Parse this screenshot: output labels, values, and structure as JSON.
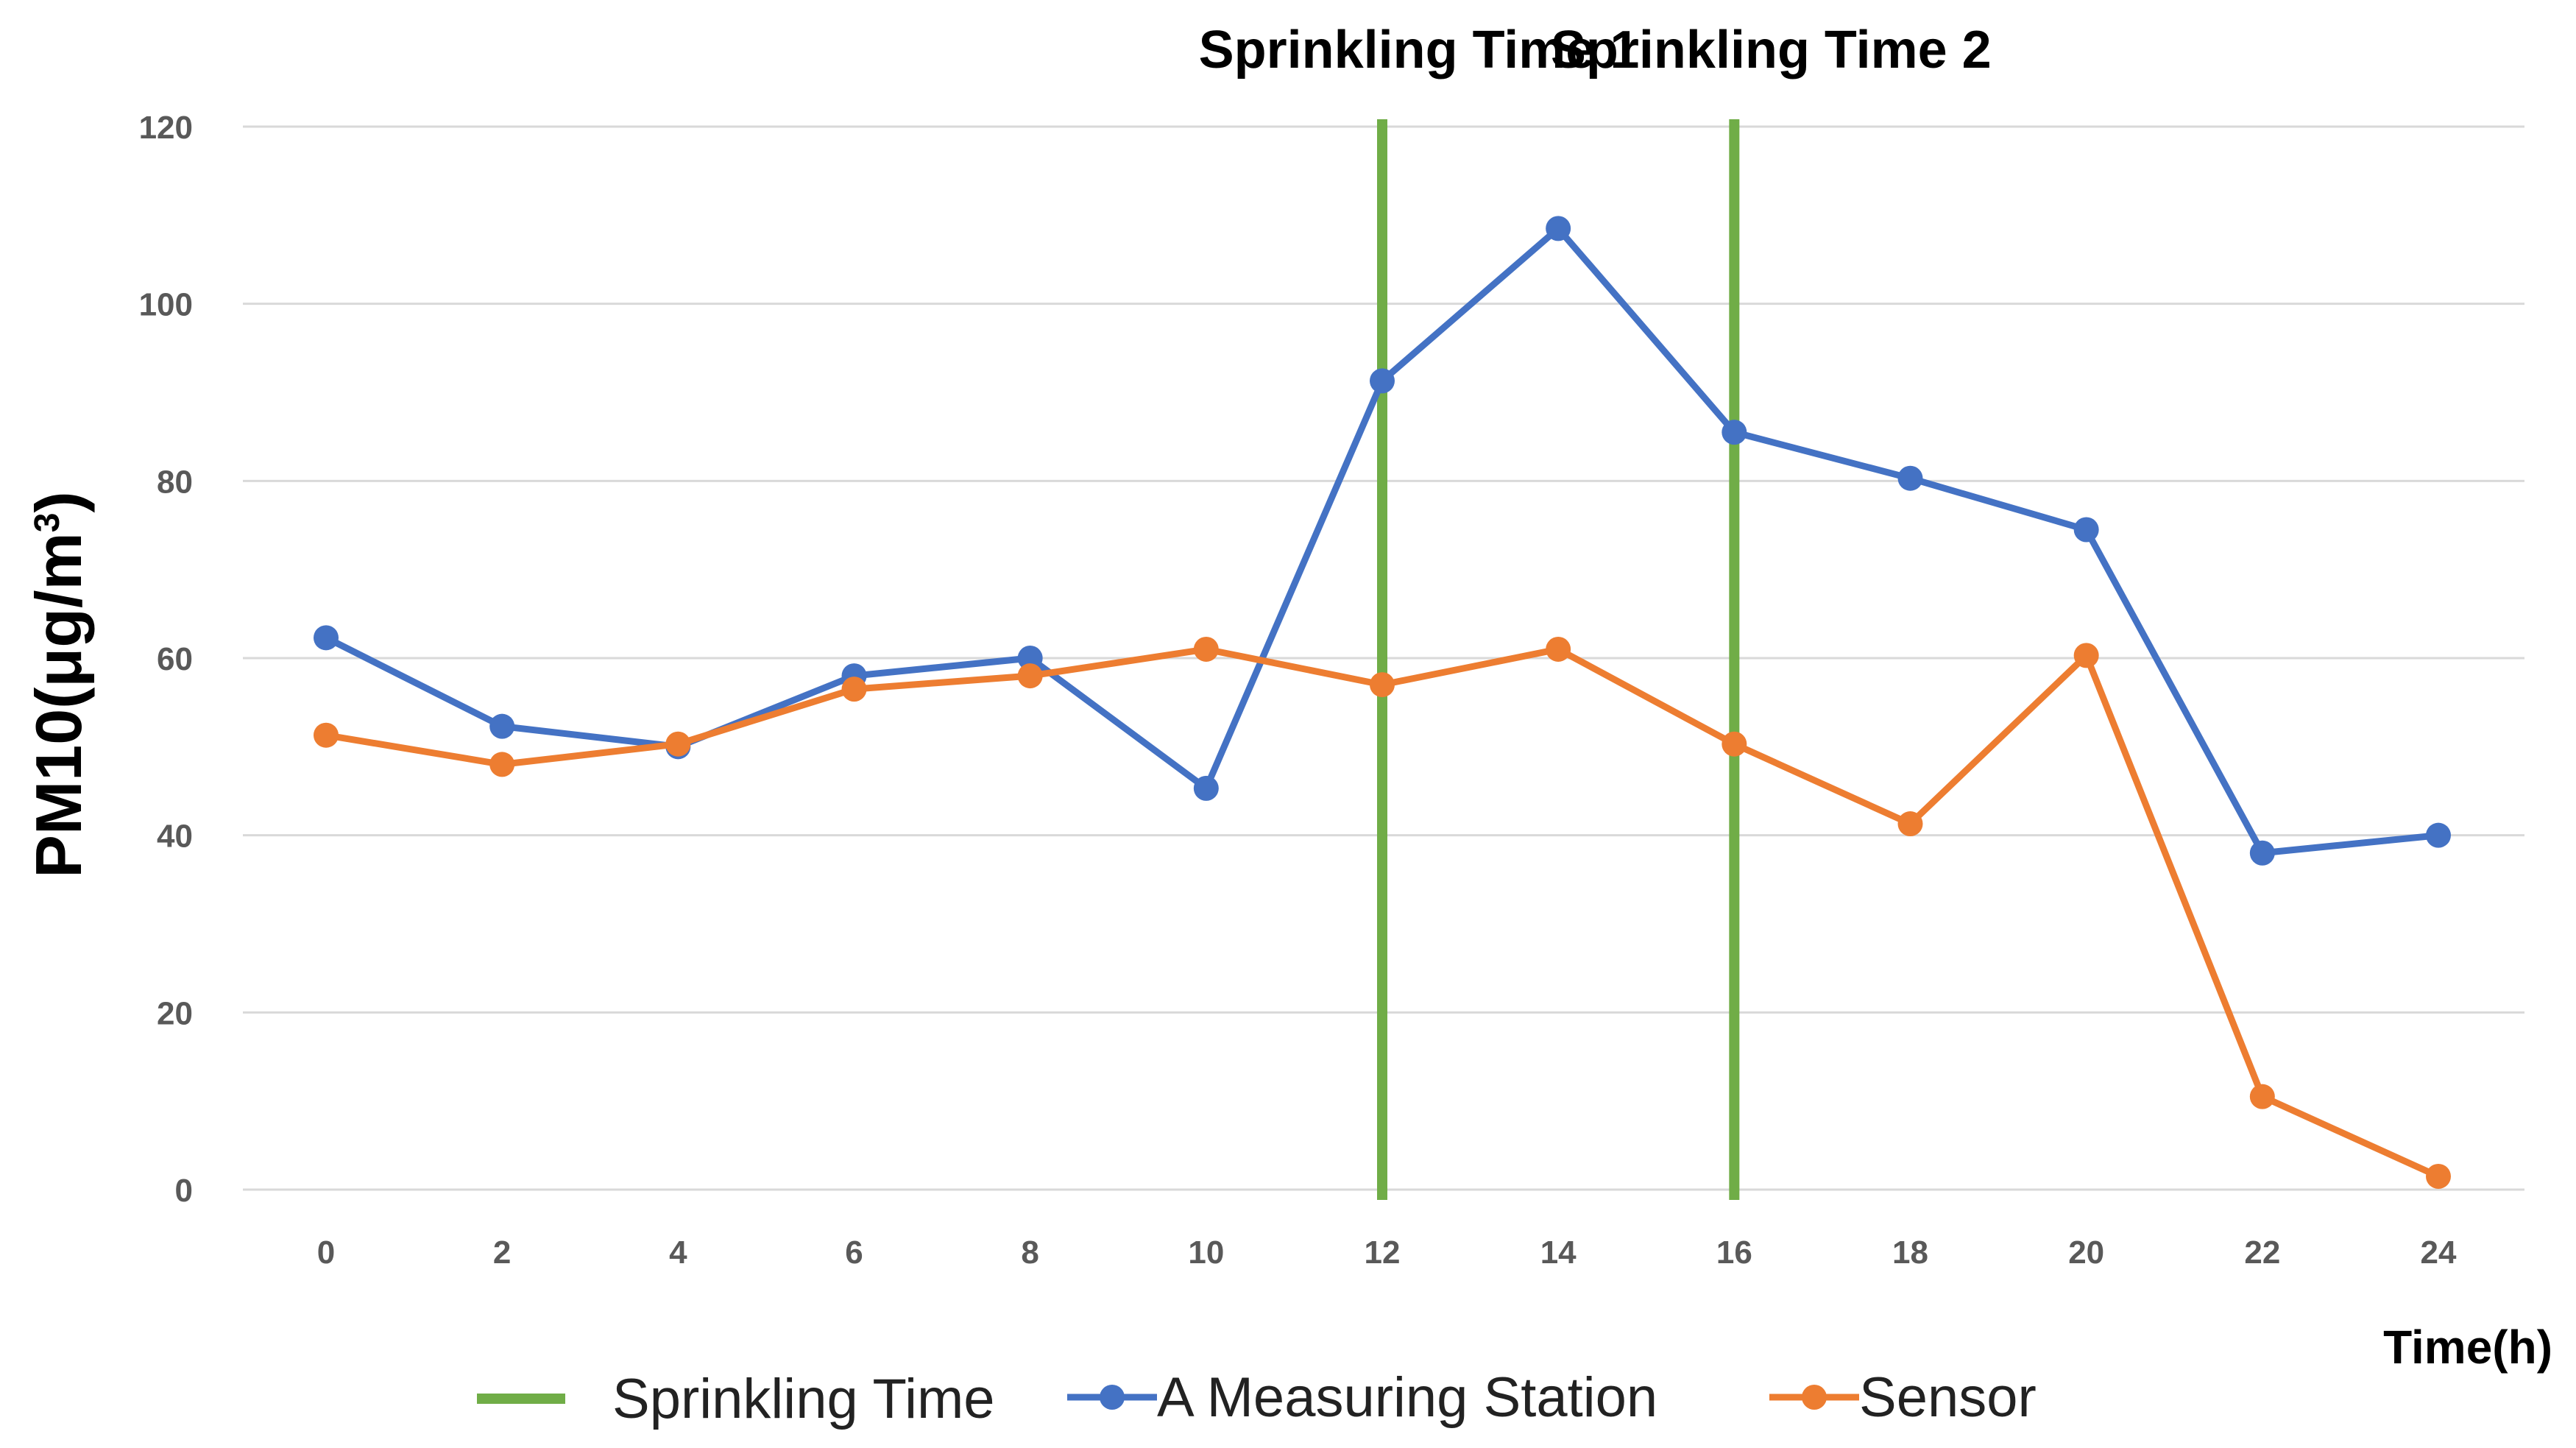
{
  "chart_data": {
    "type": "line",
    "title": "",
    "xlabel": "Time(h)",
    "ylabel_main": "PM10(μg/m",
    "ylabel_sup": "3",
    "ylabel_close": ")",
    "ylim": [
      0,
      120
    ],
    "yticks": [
      0,
      20,
      40,
      60,
      80,
      100,
      120
    ],
    "x": [
      0,
      2,
      4,
      6,
      8,
      10,
      12,
      14,
      16,
      18,
      20,
      22,
      24
    ],
    "x_tick_labels": [
      "0",
      "2",
      "4",
      "6",
      "8",
      "10",
      "12",
      "14",
      "16",
      "18",
      "20",
      "22",
      "24"
    ],
    "y_tick_labels": [
      "0",
      "20",
      "40",
      "60",
      "80",
      "100",
      "120"
    ],
    "grid": true,
    "legend_position": "bottom",
    "series": [
      {
        "name": "A Measuring Station",
        "color": "#4472C4",
        "values": [
          62.3,
          52.3,
          50.0,
          58.0,
          60.0,
          45.3,
          91.3,
          108.5,
          85.5,
          80.3,
          74.5,
          38.0,
          40.0
        ]
      },
      {
        "name": "Sensor",
        "color": "#ED7D31",
        "values": [
          51.3,
          48.0,
          50.3,
          56.5,
          58.0,
          61.0,
          57.0,
          61.0,
          50.3,
          41.3,
          60.3,
          10.5,
          1.5
        ]
      }
    ],
    "vlines": {
      "name": "Sprinkling Time",
      "color": "#70AD47",
      "x": [
        12,
        16
      ]
    },
    "annotations": [
      {
        "text": "Sprinkling Time 1",
        "x": 12
      },
      {
        "text": "Sprinkling Time 2",
        "x": 16
      }
    ]
  }
}
